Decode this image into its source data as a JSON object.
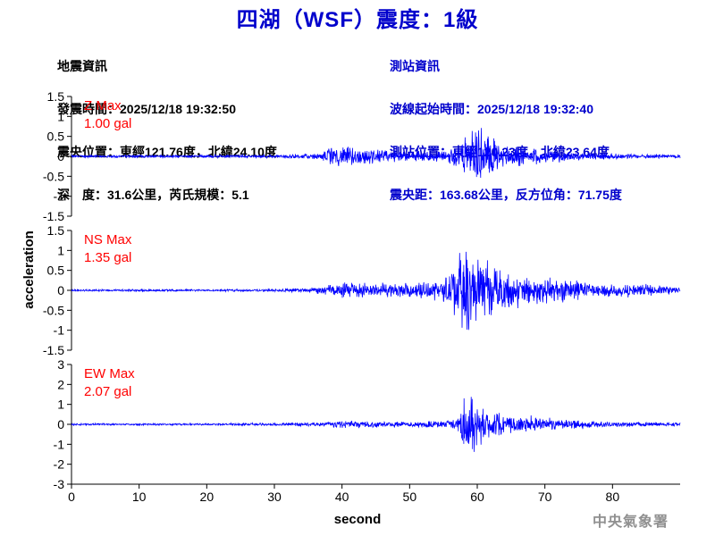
{
  "header": {
    "title": "四湖（WSF）震度：1級"
  },
  "quake_info": {
    "heading": "地震資訊",
    "origin_time": "發震時間：2025/12/18 19:32:50",
    "epicenter": "震央位置：東經121.76度，北緯24.10度",
    "depth_magnitude": "深　度：31.6公里，芮氏規模：5.1"
  },
  "station_info": {
    "heading": "測站資訊",
    "arrival_time": "波線起始時間：2025/12/18 19:32:40",
    "location": "測站位置：東經120.23度，北緯23.64度",
    "distance": "震央距：163.68公里，反方位角：71.75度"
  },
  "footer": {
    "agency": "中央氣象署"
  },
  "colors": {
    "title": "#0000cc",
    "trace": "#0000ff",
    "max_label": "#ff0000",
    "station_info": "#0000cc"
  },
  "chart_data": [
    {
      "type": "line",
      "component": "Z",
      "max_label": "Z Max",
      "max_value": "1.00 gal",
      "ylim": [
        -1.5,
        1.5
      ],
      "yticks": [
        "1.5",
        "1",
        "0.5",
        "0",
        "-0.5",
        "-1",
        "-1.5"
      ],
      "ytick_values": [
        1.5,
        1,
        0.5,
        0,
        -0.5,
        -1,
        -1.5
      ],
      "x": [
        0,
        10,
        20,
        30,
        37,
        38,
        40,
        45,
        50,
        55,
        58,
        59,
        60,
        61,
        62,
        63,
        65,
        70,
        75,
        80,
        90
      ],
      "envelope": [
        0.04,
        0.04,
        0.04,
        0.05,
        0.08,
        0.32,
        0.28,
        0.2,
        0.14,
        0.18,
        0.45,
        0.75,
        0.98,
        0.8,
        0.62,
        0.4,
        0.3,
        0.2,
        0.12,
        0.08,
        0.05
      ]
    },
    {
      "type": "line",
      "component": "NS",
      "max_label": "NS Max",
      "max_value": "1.35 gal",
      "ylim": [
        -1.5,
        1.5
      ],
      "yticks": [
        "1.5",
        "1",
        "0.5",
        "0",
        "-0.5",
        "-1",
        "-1.5"
      ],
      "ytick_values": [
        1.5,
        1,
        0.5,
        0,
        -0.5,
        -1,
        -1.5
      ],
      "x": [
        0,
        10,
        20,
        30,
        36,
        38,
        40,
        45,
        50,
        54,
        56,
        58,
        59,
        60,
        62,
        63,
        65,
        70,
        75,
        80,
        90
      ],
      "envelope": [
        0.03,
        0.03,
        0.03,
        0.04,
        0.08,
        0.15,
        0.22,
        0.2,
        0.2,
        0.3,
        0.5,
        1.35,
        1.25,
        1.05,
        0.78,
        0.6,
        0.52,
        0.4,
        0.3,
        0.2,
        0.12
      ]
    },
    {
      "type": "line",
      "component": "EW",
      "max_label": "EW Max",
      "max_value": "2.07 gal",
      "ylim": [
        -3,
        3
      ],
      "yticks": [
        "3",
        "2",
        "1",
        "0",
        "-1",
        "-2",
        "-3"
      ],
      "ytick_values": [
        3,
        2,
        1,
        0,
        -1,
        -2,
        -3
      ],
      "x": [
        0,
        10,
        20,
        30,
        37,
        40,
        45,
        50,
        55,
        57,
        58,
        59,
        60,
        61,
        62,
        65,
        70,
        75,
        80,
        90
      ],
      "envelope": [
        0.06,
        0.06,
        0.06,
        0.08,
        0.12,
        0.2,
        0.18,
        0.16,
        0.2,
        0.3,
        1.55,
        2.07,
        1.3,
        1.0,
        0.8,
        0.6,
        0.4,
        0.25,
        0.15,
        0.1
      ]
    }
  ],
  "xaxis": {
    "label": "second",
    "xlim": [
      0,
      90
    ],
    "ticks": [
      "0",
      "10",
      "20",
      "30",
      "40",
      "50",
      "60",
      "70",
      "80"
    ],
    "tick_values": [
      0,
      10,
      20,
      30,
      40,
      50,
      60,
      70,
      80
    ]
  },
  "yaxis": {
    "label": "acceleration"
  }
}
